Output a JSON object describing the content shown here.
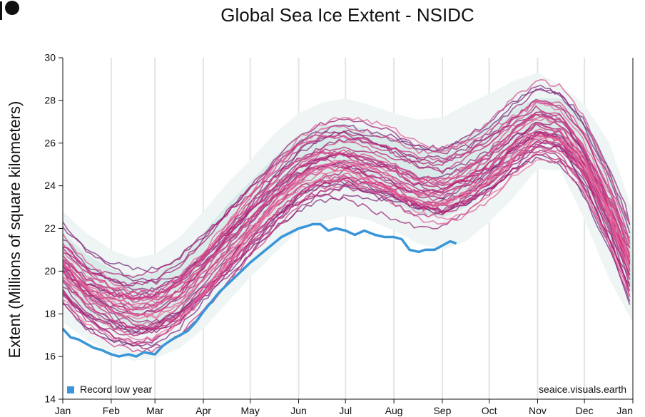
{
  "chart_data": {
    "type": "line",
    "title": "Global Sea Ice Extent - NSIDC",
    "ylabel": "Extent (Millions of square kilometers)",
    "xlabel": "",
    "ylim": [
      14,
      30
    ],
    "yticks": [
      14,
      16,
      18,
      20,
      22,
      24,
      26,
      28,
      30
    ],
    "xlim": [
      0,
      365
    ],
    "months": [
      "Jan",
      "Feb",
      "Mar",
      "Apr",
      "May",
      "Jun",
      "Jul",
      "Aug",
      "Sep",
      "Oct",
      "Nov",
      "Dec",
      "Jan"
    ],
    "month_days": [
      0,
      31,
      59,
      90,
      120,
      151,
      181,
      212,
      243,
      273,
      304,
      334,
      365
    ],
    "grid": "vertical",
    "legend": {
      "label": "Record low year",
      "placement": "bottom-left",
      "color": "#3a96d8"
    },
    "source_text": "seaice.visuals.earth",
    "climatology_bands": {
      "x": [
        0,
        15,
        31,
        45,
        59,
        75,
        90,
        105,
        120,
        135,
        151,
        166,
        181,
        196,
        212,
        227,
        243,
        258,
        273,
        288,
        304,
        319,
        334,
        350,
        365
      ],
      "outer_low": [
        17.6,
        16.8,
        16.2,
        15.8,
        15.9,
        16.4,
        17.3,
        18.5,
        19.7,
        20.8,
        21.9,
        22.3,
        22.6,
        22.4,
        21.9,
        21.3,
        21.0,
        21.4,
        22.3,
        23.4,
        24.8,
        24.7,
        22.4,
        19.6,
        17.6
      ],
      "inner_low": [
        18.9,
        17.9,
        17.3,
        17.0,
        17.1,
        17.8,
        18.8,
        20.1,
        21.4,
        22.5,
        23.5,
        23.9,
        24.0,
        23.7,
        23.2,
        22.7,
        22.5,
        23.0,
        23.9,
        25.1,
        26.2,
        25.8,
        23.9,
        21.2,
        18.9
      ],
      "inner_high": [
        21.8,
        20.8,
        20.1,
        19.8,
        19.9,
        20.7,
        21.8,
        23.1,
        24.2,
        25.3,
        26.4,
        26.8,
        26.9,
        26.6,
        26.2,
        25.8,
        25.8,
        26.3,
        26.9,
        27.6,
        28.1,
        28.1,
        27.2,
        24.9,
        21.8
      ],
      "outer_high": [
        22.8,
        21.8,
        21.0,
        20.6,
        20.8,
        21.6,
        22.8,
        24.1,
        25.2,
        26.4,
        27.4,
        27.9,
        28.1,
        27.8,
        27.4,
        27.1,
        27.2,
        27.8,
        28.3,
        28.9,
        29.3,
        28.7,
        27.8,
        26.0,
        22.8
      ]
    },
    "year_curve_shape": {
      "x": [
        0,
        15,
        31,
        45,
        59,
        75,
        90,
        105,
        120,
        135,
        151,
        166,
        181,
        196,
        212,
        227,
        243,
        258,
        273,
        288,
        304,
        319,
        334,
        350,
        365
      ],
      "mean": [
        20.4,
        19.3,
        18.7,
        18.4,
        18.5,
        19.2,
        20.3,
        21.5,
        22.7,
        23.8,
        24.8,
        25.3,
        25.4,
        25.1,
        24.7,
        24.2,
        24.1,
        24.6,
        25.3,
        26.3,
        27.1,
        26.8,
        25.4,
        23.1,
        20.4
      ],
      "year_count": 45,
      "color_old": "#6e2a7c",
      "color_mid": "#b8176f",
      "color_new": "#f06fa0"
    },
    "series": [
      {
        "name": "Record low year",
        "color": "#3a96d8",
        "x": [
          0,
          5,
          10,
          15,
          20,
          25,
          31,
          36,
          42,
          47,
          52,
          59,
          64,
          70,
          75,
          80,
          85,
          90,
          100,
          110,
          120,
          130,
          140,
          151,
          156,
          160,
          165,
          170,
          175,
          181,
          187,
          193,
          200,
          206,
          212,
          217,
          222,
          228,
          232,
          238,
          243,
          248,
          252
        ],
        "values": [
          17.3,
          16.9,
          16.8,
          16.6,
          16.4,
          16.3,
          16.1,
          16.0,
          16.1,
          16.0,
          16.2,
          16.1,
          16.5,
          16.8,
          17.0,
          17.2,
          17.6,
          18.1,
          19.0,
          19.7,
          20.4,
          21.0,
          21.6,
          22.0,
          22.1,
          22.2,
          22.2,
          21.9,
          22.0,
          21.9,
          21.7,
          21.9,
          21.7,
          21.6,
          21.6,
          21.5,
          21.0,
          20.9,
          21.0,
          21.0,
          21.2,
          21.4,
          21.3
        ]
      }
    ]
  }
}
